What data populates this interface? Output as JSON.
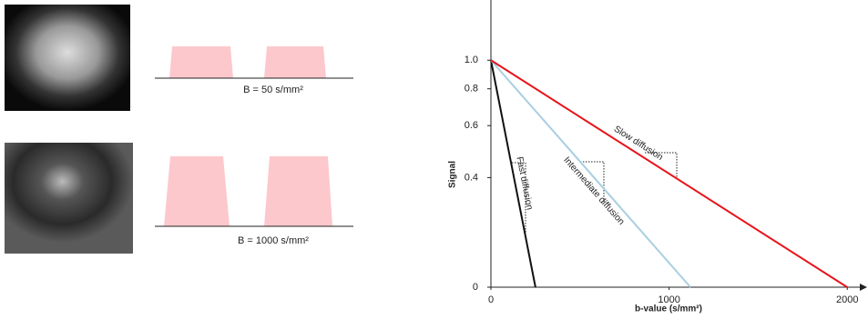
{
  "chart_data": {
    "type": "line",
    "labels": [
      "B = 50 s/mm²",
      "B = 1000 s/mm²"
    ],
    "ylabel": "Signal",
    "xlabel": "b-value (s/mm²)",
    "log_scale": true,
    "xlim": [
      0,
      2050
    ],
    "xticks": [
      0,
      1000,
      2000
    ],
    "ylim": [
      0.17,
      1.6
    ],
    "yticks": [
      {
        "value": 0.17,
        "label": "0"
      },
      0.4,
      0.6,
      0.8,
      {
        "value": 1,
        "label": "1.0"
      }
    ],
    "series": [
      {
        "name": "Fast diffusion",
        "color": "#111111",
        "x": [
          0,
          250
        ],
        "values": [
          1,
          0.17
        ]
      },
      {
        "name": "Intermediate diffusion",
        "color": "#a9cfe0",
        "x": [
          0,
          1120
        ],
        "values": [
          1,
          0.17
        ]
      },
      {
        "name": "Slow diffusion",
        "color": "#e8141a",
        "x": [
          0,
          2000
        ],
        "values": [
          1,
          0.17
        ]
      }
    ]
  }
}
